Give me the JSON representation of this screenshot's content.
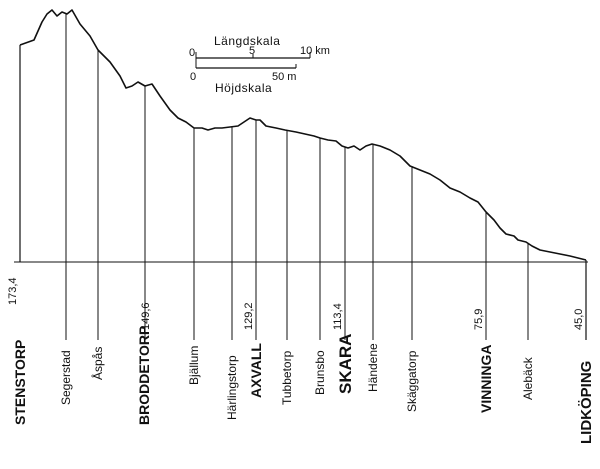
{
  "profile": {
    "stations": [
      {
        "name": "STENSTORP",
        "elevation_label": "173,4",
        "major": true
      },
      {
        "name": "Segerstad",
        "elevation_label": "",
        "major": false
      },
      {
        "name": "Åspås",
        "elevation_label": "",
        "major": false
      },
      {
        "name": "BRODDETORP",
        "elevation_label": "149,6",
        "major": true
      },
      {
        "name": "Bjällum",
        "elevation_label": "",
        "major": false
      },
      {
        "name": "Härlingstorp",
        "elevation_label": "",
        "major": false
      },
      {
        "name": "AXVALL",
        "elevation_label": "129,2",
        "major": true
      },
      {
        "name": "Tubbetorp",
        "elevation_label": "",
        "major": false
      },
      {
        "name": "Brunsbo",
        "elevation_label": "113,4",
        "major": false
      },
      {
        "name": "SKARA",
        "elevation_label": "",
        "major": true
      },
      {
        "name": "Händene",
        "elevation_label": "",
        "major": false
      },
      {
        "name": "Skäggatorp",
        "elevation_label": "",
        "major": false
      },
      {
        "name": "VINNINGA",
        "elevation_label": "75,9",
        "major": true
      },
      {
        "name": "Alebäck",
        "elevation_label": "",
        "major": false
      },
      {
        "name": "LIDKÖPING",
        "elevation_label": "45,0",
        "major": true
      }
    ]
  },
  "scale": {
    "length_title": "Längdskala",
    "length_ticks": [
      "0",
      "5",
      "10 km"
    ],
    "height_title": "Höjdskala",
    "height_ticks": [
      "0",
      "50 m"
    ]
  }
}
